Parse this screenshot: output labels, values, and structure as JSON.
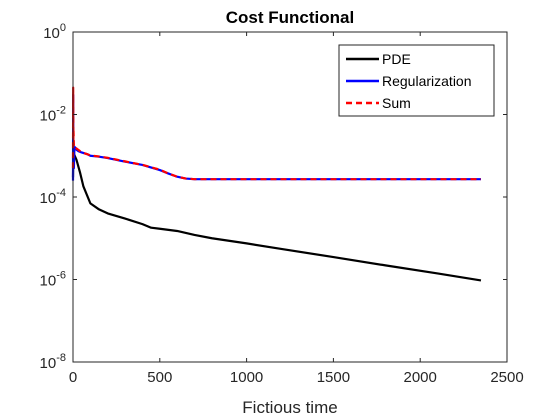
{
  "chart_data": {
    "type": "line",
    "title": "Cost Functional",
    "xlabel": "Fictious time",
    "ylabel": "",
    "xlim": [
      0,
      2500
    ],
    "ylim": [
      1e-08,
      1
    ],
    "yscale": "log",
    "x_ticks": [
      0,
      500,
      1000,
      1500,
      2000,
      2500
    ],
    "x_tick_labels": [
      "0",
      "500",
      "1000",
      "1500",
      "2000",
      "2500"
    ],
    "y_ticks": [
      {
        "value": 1e-08,
        "base": "10",
        "exp": "-8"
      },
      {
        "value": 1e-06,
        "base": "10",
        "exp": "-6"
      },
      {
        "value": 0.0001,
        "base": "10",
        "exp": "-4"
      },
      {
        "value": 0.01,
        "base": "10",
        "exp": "-2"
      },
      {
        "value": 1,
        "base": "10",
        "exp": "0"
      }
    ],
    "grid": false,
    "legend_position": "top-right",
    "series": [
      {
        "name": "PDE",
        "color": "#000000",
        "dash": "solid",
        "x": [
          0,
          2,
          5,
          10,
          20,
          40,
          60,
          100,
          150,
          200,
          300,
          400,
          450,
          500,
          600,
          700,
          800,
          1000,
          1200,
          1500,
          1800,
          2100,
          2350
        ],
        "y": [
          0.0003,
          0.0012,
          0.0011,
          0.001,
          0.0008,
          0.0004,
          0.00018,
          7e-05,
          5e-05,
          4e-05,
          3e-05,
          2.2e-05,
          1.8e-05,
          1.7e-05,
          1.5e-05,
          1.2e-05,
          1e-05,
          7.5e-06,
          5.5e-06,
          3.5e-06,
          2.2e-06,
          1.4e-06,
          9.5e-07
        ]
      },
      {
        "name": "Regularization",
        "color": "#0000ff",
        "dash": "solid",
        "x": [
          0,
          1,
          2,
          3,
          5,
          8,
          12,
          20,
          30,
          50,
          80,
          100,
          150,
          200,
          300,
          400,
          500,
          550,
          600,
          650,
          700,
          1000,
          1500,
          2000,
          2350
        ],
        "y": [
          0.00025,
          0.03,
          0.0006,
          0.002,
          0.0005,
          0.0015,
          0.0016,
          0.0014,
          0.0013,
          0.0012,
          0.0011,
          0.001,
          0.00095,
          0.00088,
          0.00072,
          0.0006,
          0.00045,
          0.00037,
          0.00031,
          0.00028,
          0.00027,
          0.00027,
          0.00027,
          0.00027,
          0.00027
        ]
      },
      {
        "name": "Sum",
        "color": "#ff0000",
        "dash": "dashed",
        "x": [
          0,
          1,
          2,
          3,
          5,
          8,
          12,
          20,
          30,
          50,
          80,
          100,
          150,
          200,
          300,
          400,
          500,
          550,
          600,
          650,
          700,
          1000,
          1500,
          2000,
          2350
        ],
        "y": [
          0.0005,
          0.045,
          0.0025,
          0.004,
          0.0018,
          0.0019,
          0.0017,
          0.0015,
          0.0014,
          0.0012,
          0.0011,
          0.00102,
          0.00096,
          0.00089,
          0.00073,
          0.0006,
          0.00046,
          0.00037,
          0.00031,
          0.00028,
          0.00027,
          0.00027,
          0.00027,
          0.00027,
          0.00027
        ]
      }
    ]
  }
}
